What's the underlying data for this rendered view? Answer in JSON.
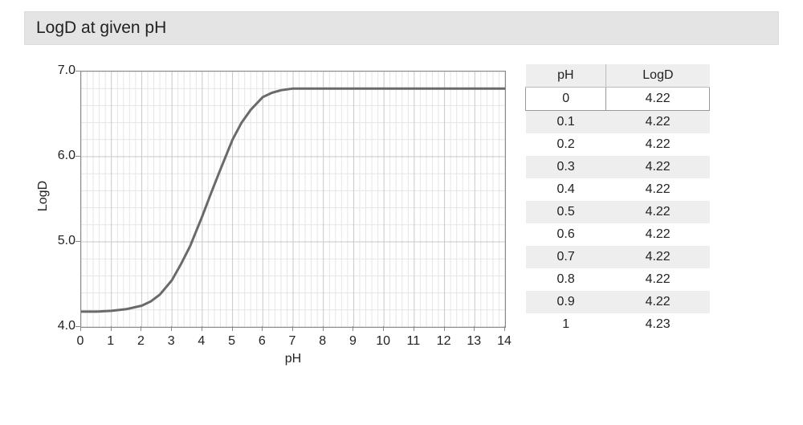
{
  "header": {
    "title": "LogD at given pH"
  },
  "chart": {
    "type": "line",
    "xlabel": "pH",
    "ylabel": "LogD",
    "xlim": [
      0,
      14
    ],
    "ylim": [
      4.0,
      7.0
    ],
    "xtick_step": 1,
    "xtick_labels": [
      "0",
      "1",
      "2",
      "3",
      "4",
      "5",
      "6",
      "7",
      "8",
      "9",
      "10",
      "11",
      "12",
      "13",
      "14"
    ],
    "ytick_positions": [
      4.0,
      5.0,
      6.0,
      7.0
    ],
    "ytick_labels": [
      "4.0",
      "5.0",
      "6.0",
      "7.0"
    ],
    "minor_grid_divisions": 5,
    "background_color": "#ffffff",
    "border_color": "#8a8a8a",
    "major_grid_color": "#c8c8c8",
    "minor_grid_color": "#e6e6e6",
    "line_color": "#6a6a6a",
    "line_width": 3,
    "label_fontsize": 16,
    "tick_fontsize": 16,
    "series": {
      "x": [
        0,
        0.5,
        1,
        1.5,
        2,
        2.3,
        2.6,
        3,
        3.3,
        3.6,
        4,
        4.3,
        4.6,
        5,
        5.3,
        5.6,
        6,
        6.3,
        6.6,
        7,
        8,
        9,
        10,
        11,
        12,
        13,
        14
      ],
      "y": [
        4.18,
        4.18,
        4.19,
        4.21,
        4.25,
        4.3,
        4.38,
        4.55,
        4.74,
        4.95,
        5.3,
        5.58,
        5.85,
        6.2,
        6.4,
        6.55,
        6.7,
        6.75,
        6.78,
        6.8,
        6.8,
        6.8,
        6.8,
        6.8,
        6.8,
        6.8,
        6.8
      ]
    }
  },
  "table": {
    "columns": [
      "pH",
      "LogD"
    ],
    "rows": [
      {
        "ph": "0",
        "logd": "4.22",
        "highlight": true
      },
      {
        "ph": "0.1",
        "logd": "4.22"
      },
      {
        "ph": "0.2",
        "logd": "4.22"
      },
      {
        "ph": "0.3",
        "logd": "4.22"
      },
      {
        "ph": "0.4",
        "logd": "4.22"
      },
      {
        "ph": "0.5",
        "logd": "4.22"
      },
      {
        "ph": "0.6",
        "logd": "4.22"
      },
      {
        "ph": "0.7",
        "logd": "4.22"
      },
      {
        "ph": "0.8",
        "logd": "4.22"
      },
      {
        "ph": "0.9",
        "logd": "4.22"
      },
      {
        "ph": "1",
        "logd": "4.23"
      }
    ],
    "header_bg": "#eeeeee",
    "stripe_colors": [
      "#ffffff",
      "#eeeeee"
    ],
    "border_color": "#bbbbbb",
    "fontsize": 16
  }
}
